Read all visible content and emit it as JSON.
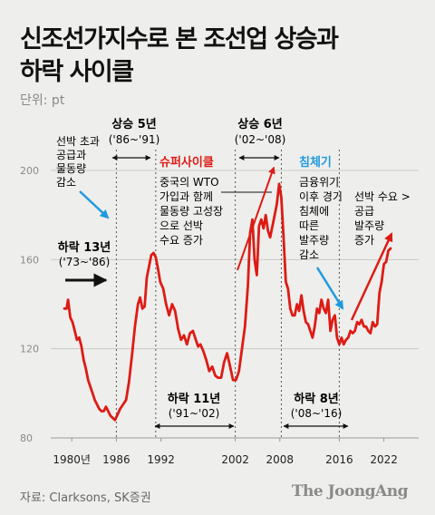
{
  "title": [
    "신조선가지수로 본 조선업 상승과",
    "하락 사이클"
  ],
  "unit": "단위: pt",
  "source": "자료: Clarksons, SK증권",
  "brand": "The JoongAng",
  "colors": {
    "line": "#dd1b14",
    "annotation_arrow": "#1f9ae0",
    "accent_text": "#dd1b14",
    "blue_text": "#1f9ae0",
    "black_arrow": "#111111"
  },
  "chart_data": {
    "type": "line",
    "title": "신조선가지수로 본 조선업 상승과 하락 사이클",
    "ylabel": "단위: pt",
    "ylim": [
      80,
      210
    ],
    "yticks": [
      80,
      120,
      160,
      200
    ],
    "xlim": [
      1977.5,
      2023.5
    ],
    "xtick_labels": [
      "1980년",
      "1986",
      "1992",
      "2002",
      "2008",
      "2016",
      "2022"
    ],
    "xtick_values": [
      1980,
      1986,
      1992,
      2002,
      2008,
      2016,
      2022
    ],
    "series": [
      {
        "x": [
          1979.0,
          1979.3,
          1979.5,
          1979.8,
          1980.1,
          1980.4,
          1980.7,
          1981.0,
          1981.3,
          1981.6,
          1981.9,
          1982.2,
          1982.5,
          1982.8,
          1983.1,
          1983.4,
          1983.7,
          1984.0,
          1984.3,
          1984.6,
          1984.9,
          1985.2,
          1985.5,
          1985.8,
          1986.1,
          1986.5,
          1986.9,
          1987.3,
          1987.7,
          1988.1,
          1988.5,
          1988.9,
          1989.2,
          1989.5,
          1989.8,
          1990.1,
          1990.4,
          1990.7,
          1991.0,
          1991.3,
          1991.6,
          1991.9,
          1992.3,
          1992.7,
          1993.1,
          1993.5,
          1993.9,
          1994.3,
          1994.7,
          1995.1,
          1995.5,
          1995.9,
          1996.3,
          1996.7,
          1997.0,
          1997.3,
          1997.7,
          1998.1,
          1998.5,
          1998.9,
          1999.3,
          1999.7,
          2000.1,
          2000.5,
          2000.9,
          2001.3,
          2001.7,
          2002.1,
          2002.5,
          2002.9,
          2003.3,
          2003.7,
          2004.0,
          2004.3,
          2004.6,
          2004.9,
          2005.2,
          2005.5,
          2005.8,
          2006.1,
          2006.4,
          2006.7,
          2007.0,
          2007.3,
          2007.6,
          2007.9,
          2008.2,
          2008.5,
          2008.8,
          2009.1,
          2009.4,
          2009.7,
          2010.0,
          2010.3,
          2010.6,
          2010.9,
          2011.2,
          2011.5,
          2011.8,
          2012.1,
          2012.4,
          2012.7,
          2013.0,
          2013.3,
          2013.6,
          2013.9,
          2014.2,
          2014.5,
          2014.8,
          2015.1,
          2015.4,
          2015.7,
          2016.0,
          2016.3,
          2016.6,
          2016.9,
          2017.2,
          2017.5,
          2017.8,
          2018.1,
          2018.4,
          2018.7,
          2019.0,
          2019.3,
          2019.6,
          2019.9,
          2020.2,
          2020.5,
          2020.8,
          2021.1,
          2021.4,
          2021.7,
          2022.0,
          2022.3,
          2022.6,
          2022.9
        ],
        "values": [
          138,
          138,
          142,
          134,
          132,
          128,
          124,
          125,
          121,
          115,
          111,
          106,
          103,
          100,
          97,
          95,
          93,
          92,
          92,
          94,
          92,
          90,
          89,
          88,
          90,
          93,
          95,
          97,
          105,
          117,
          130,
          140,
          143,
          138,
          139,
          152,
          157,
          162,
          163,
          161,
          156,
          150,
          147,
          140,
          135,
          140,
          137,
          129,
          124,
          126,
          122,
          127,
          128,
          124,
          121,
          122,
          119,
          115,
          110,
          112,
          108,
          107,
          107,
          114,
          118,
          112,
          106,
          106,
          110,
          120,
          130,
          148,
          172,
          178,
          160,
          153,
          175,
          178,
          174,
          180,
          173,
          170,
          175,
          180,
          185,
          194,
          188,
          170,
          150,
          147,
          138,
          135,
          135,
          140,
          137,
          144,
          137,
          132,
          131,
          128,
          125,
          130,
          138,
          136,
          142,
          138,
          136,
          142,
          128,
          133,
          135,
          125,
          122,
          125,
          122,
          124,
          125,
          128,
          127,
          128,
          132,
          131,
          133,
          130,
          130,
          128,
          127,
          132,
          130,
          131,
          145,
          150,
          158,
          159,
          164,
          165
        ]
      }
    ],
    "phases": [
      {
        "label": "상승 5년",
        "period": "('86~'91)"
      },
      {
        "label": "상승 6년",
        "period": "('02~'08)"
      },
      {
        "label": "하락 13년",
        "period": "('73~'86)"
      },
      {
        "label": "하락 11년",
        "period": "('91~'02)"
      },
      {
        "label": "하락 8년",
        "period": "('08~'16)"
      }
    ],
    "annotations": {
      "left_note": [
        "선박 초과",
        "공급과",
        "물동량",
        "감소"
      ],
      "super_cycle_title": "슈퍼사이클",
      "super_cycle_note": [
        "중국의 WTO",
        "가입과 함께",
        "물동량 고성장",
        "으로 선박",
        "수요 증가"
      ],
      "slump_title": "침체기",
      "slump_note": [
        "금융위기",
        "이후 경기",
        "침체에",
        "따른",
        "발주량",
        "감소"
      ],
      "right_note": [
        "선박 수요 >",
        "공급",
        "발주량",
        "증가"
      ]
    }
  }
}
